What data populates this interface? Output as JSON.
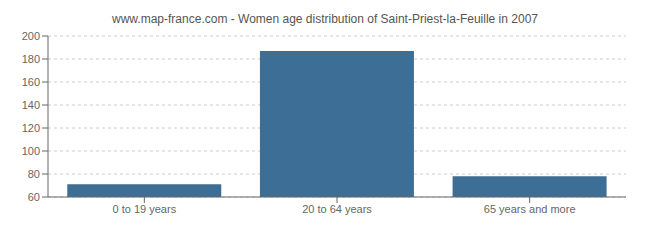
{
  "chart_data": {
    "type": "bar",
    "title": "www.map-france.com - Women age distribution of Saint-Priest-la-Feuille in 2007",
    "categories": [
      "0 to 19 years",
      "20 to 64 years",
      "65 years and more"
    ],
    "values": [
      71,
      187,
      78
    ],
    "color": "#3d6e96",
    "ylim": [
      60,
      200
    ],
    "yticks": [
      60,
      80,
      100,
      120,
      140,
      160,
      180,
      200
    ],
    "grid": true
  }
}
